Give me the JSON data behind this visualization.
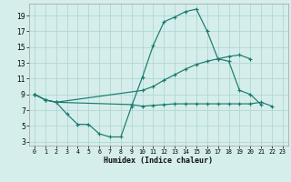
{
  "xlabel": "Humidex (Indice chaleur)",
  "bg_color": "#d5eeeb",
  "grid_color": "#b0d8d4",
  "line_color": "#1a7a6e",
  "xlim": [
    -0.5,
    23.5
  ],
  "ylim": [
    2.5,
    20.5
  ],
  "yticks": [
    3,
    5,
    7,
    9,
    11,
    13,
    15,
    17,
    19
  ],
  "xticks": [
    0,
    1,
    2,
    3,
    4,
    5,
    6,
    7,
    8,
    9,
    10,
    11,
    12,
    13,
    14,
    15,
    16,
    17,
    18,
    19,
    20,
    21,
    22,
    23
  ],
  "lines": [
    {
      "x": [
        0,
        1,
        2,
        3,
        4,
        5,
        6,
        7,
        8,
        9,
        10,
        11,
        12,
        13,
        14,
        15,
        16,
        17,
        18,
        19,
        20,
        21
      ],
      "y": [
        9.0,
        8.3,
        8.0,
        6.5,
        5.2,
        5.2,
        4.0,
        3.6,
        3.6,
        7.5,
        11.2,
        15.2,
        18.2,
        18.8,
        19.5,
        19.8,
        17.0,
        13.5,
        13.2,
        9.5,
        9.0,
        7.7
      ]
    },
    {
      "x": [
        0,
        1,
        2,
        10,
        11,
        12,
        13,
        14,
        15,
        16,
        17,
        18,
        19,
        20
      ],
      "y": [
        9.0,
        8.3,
        8.0,
        9.5,
        10.0,
        10.8,
        11.5,
        12.2,
        12.8,
        13.2,
        13.5,
        13.8,
        14.0,
        13.5
      ]
    },
    {
      "x": [
        0,
        1,
        2,
        9,
        10,
        11,
        12,
        13,
        14,
        15,
        16,
        17,
        18,
        19,
        20,
        21,
        22
      ],
      "y": [
        9.0,
        8.3,
        8.0,
        7.7,
        7.5,
        7.6,
        7.7,
        7.8,
        7.8,
        7.8,
        7.8,
        7.8,
        7.8,
        7.8,
        7.8,
        8.0,
        7.5
      ]
    }
  ]
}
